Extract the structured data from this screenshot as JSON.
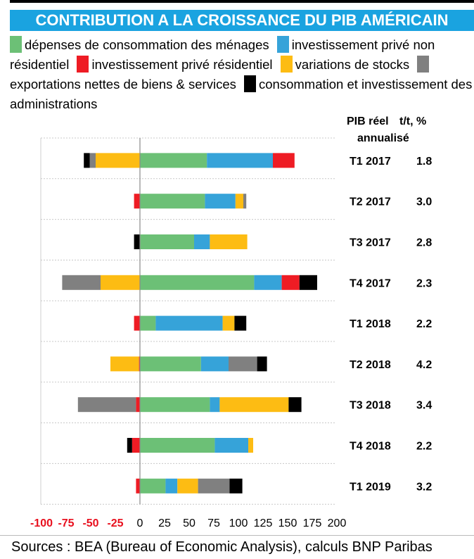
{
  "title": "CONTRIBUTION A LA CROISSANCE DU PIB AMÉRICAIN",
  "legend": [
    {
      "label": "dépenses de consommation des ménages",
      "color": "#6cc076"
    },
    {
      "label": "investissement privé non résidentiel",
      "color": "#36a3d9"
    },
    {
      "label": "investissement privé résidentiel",
      "color": "#ee1c24"
    },
    {
      "label": "variations de stocks",
      "color": "#fdbc13"
    },
    {
      "label": "exportations nettes de biens & services",
      "color": "#808080"
    },
    {
      "label": "consommation et investissement des administrations",
      "color": "#000000"
    }
  ],
  "header": {
    "col1a": "PIB réel",
    "col1b": "annualisé",
    "col2": "t/t, %"
  },
  "sources": "Sources :  BEA (Bureau of Economic Analysis), calculs BNP Paribas",
  "chart_data": {
    "type": "bar",
    "orientation": "horizontal",
    "stacked": true,
    "xlim": [
      -100,
      200
    ],
    "xticks": [
      "-100",
      "-75",
      "-50",
      "-25",
      "0",
      "25",
      "50",
      "75",
      "100",
      "125",
      "150",
      "175",
      "200"
    ],
    "tick_values": [
      -100,
      -75,
      -50,
      -25,
      0,
      25,
      50,
      75,
      100,
      125,
      150,
      175,
      200
    ],
    "negative_tick_color": "#e8101e",
    "grid": "horizontal dotted",
    "categories": [
      "T1 2017",
      "T2 2017",
      "T3 2017",
      "T4 2017",
      "T1 2018",
      "T2 2018",
      "T3 2018",
      "T4 2018",
      "T1 2019"
    ],
    "gdp": [
      "1.8",
      "3.0",
      "2.8",
      "2.3",
      "2.2",
      "4.2",
      "3.4",
      "2.2",
      "3.2"
    ],
    "series": [
      {
        "name": "dépenses de consommation des ménages",
        "color": "#6cc076",
        "values": [
          68,
          66,
          55,
          116,
          16,
          62,
          71,
          76,
          26
        ]
      },
      {
        "name": "investissement privé non résidentiel",
        "color": "#36a3d9",
        "values": [
          67,
          31,
          16,
          28,
          68,
          28,
          10,
          34,
          12
        ]
      },
      {
        "name": "investissement privé résidentiel",
        "color": "#ee1c24",
        "values": [
          22,
          -6,
          0,
          18,
          -6,
          -1,
          -4,
          -8,
          -4
        ]
      },
      {
        "name": "variations de stocks",
        "color": "#fdbc13",
        "values": [
          -45,
          8,
          38,
          -40,
          12,
          -29,
          70,
          5,
          21
        ]
      },
      {
        "name": "exportations nettes de biens & services",
        "color": "#808080",
        "values": [
          -6,
          3,
          0,
          -39,
          0,
          29,
          -59,
          0,
          32
        ]
      },
      {
        "name": "consommation et investissement des administrations",
        "color": "#000000",
        "values": [
          -6,
          0,
          -6,
          18,
          12,
          10,
          13,
          -5,
          13
        ]
      }
    ]
  }
}
